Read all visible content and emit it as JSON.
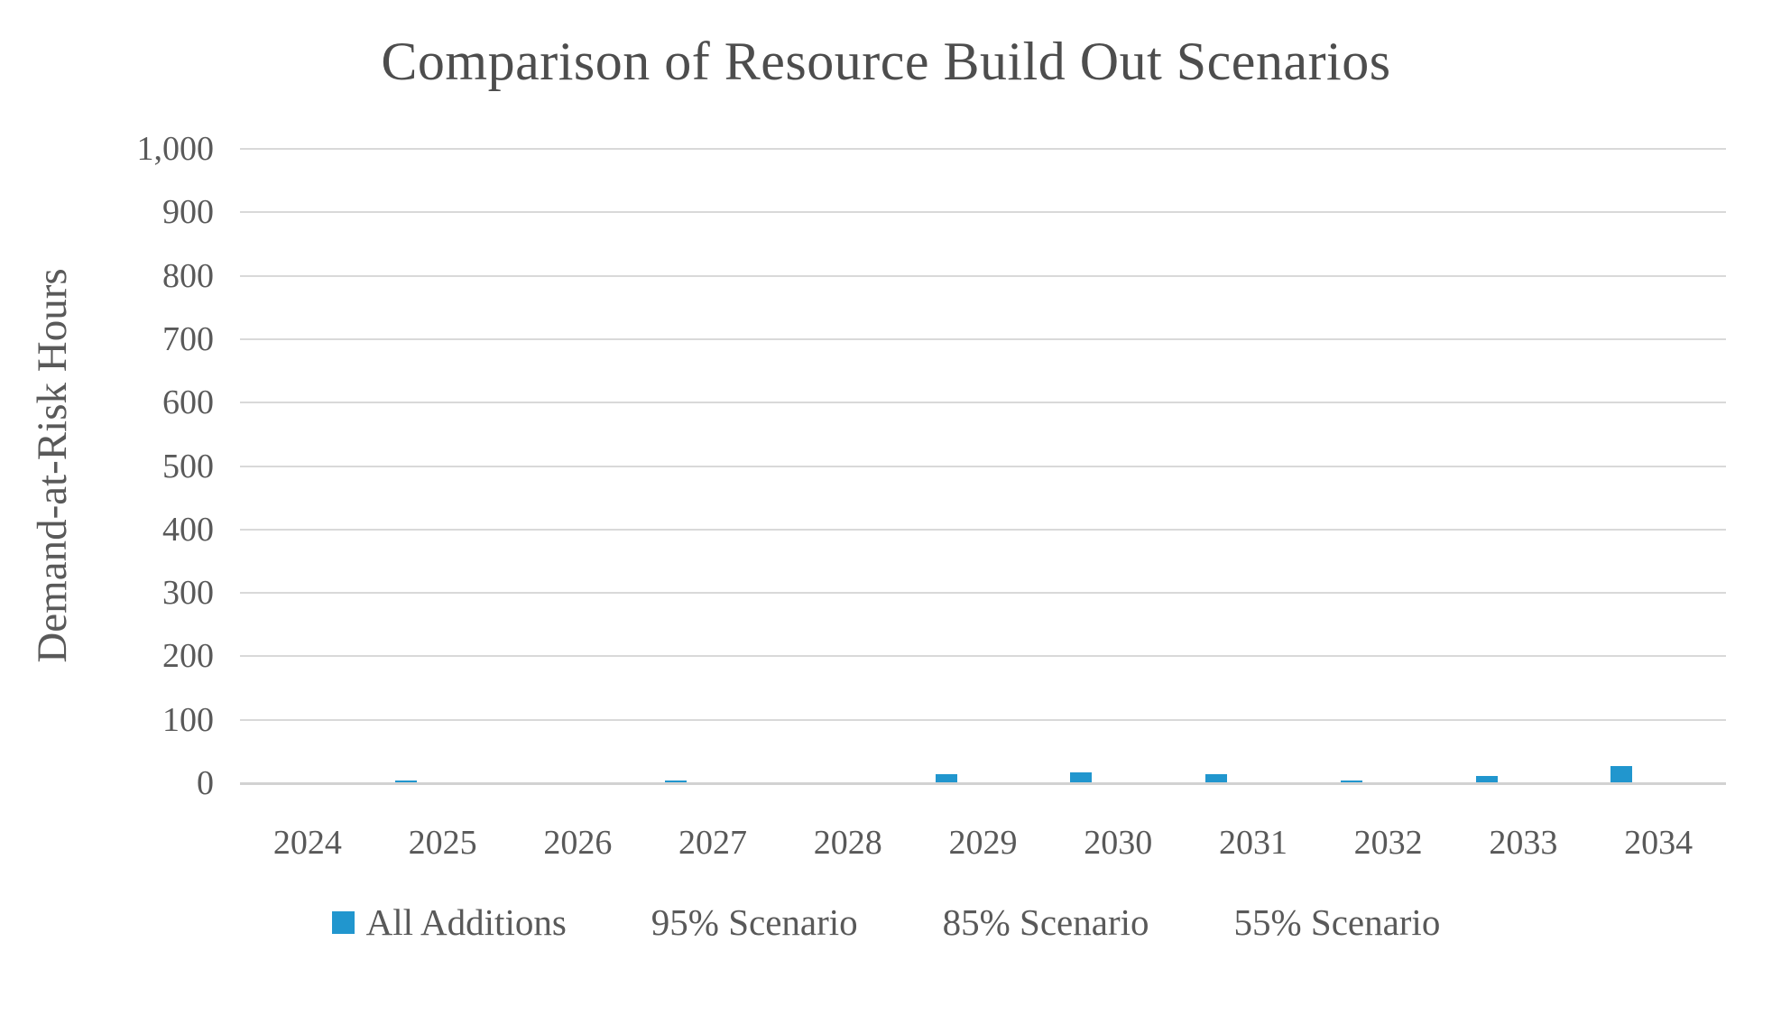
{
  "chart_data": {
    "type": "bar",
    "title": "Comparison of Resource Build Out Scenarios",
    "xlabel": "",
    "ylabel": "Demand-at-Risk Hours",
    "categories": [
      "2024",
      "2025",
      "2026",
      "2027",
      "2028",
      "2029",
      "2030",
      "2031",
      "2032",
      "2033",
      "2034"
    ],
    "series": [
      {
        "name": "All Additions",
        "color": "#2196CE",
        "values": [
          0,
          3,
          0,
          3,
          0,
          13,
          16,
          13,
          3,
          10,
          25
        ]
      },
      {
        "name": "95% Scenario",
        "color": "#FFFFFF",
        "values": [
          0,
          0,
          0,
          0,
          0,
          0,
          0,
          0,
          0,
          0,
          0
        ]
      },
      {
        "name": "85% Scenario",
        "color": "#FFFFFF",
        "values": [
          0,
          0,
          0,
          0,
          0,
          0,
          0,
          0,
          0,
          0,
          0
        ]
      },
      {
        "name": "55% Scenario",
        "color": "#FFFFFF",
        "values": [
          0,
          0,
          0,
          0,
          0,
          0,
          0,
          0,
          0,
          0,
          0
        ]
      }
    ],
    "ylim": [
      0,
      1000
    ],
    "yticks": [
      {
        "value": 0,
        "label": "0"
      },
      {
        "value": 100,
        "label": "100"
      },
      {
        "value": 200,
        "label": "200"
      },
      {
        "value": 300,
        "label": "300"
      },
      {
        "value": 400,
        "label": "400"
      },
      {
        "value": 500,
        "label": "500"
      },
      {
        "value": 600,
        "label": "600"
      },
      {
        "value": 700,
        "label": "700"
      },
      {
        "value": 800,
        "label": "800"
      },
      {
        "value": 900,
        "label": "900"
      },
      {
        "value": 1000,
        "label": "1,000"
      }
    ],
    "grid": true,
    "legend_position": "bottom"
  },
  "colors": {
    "background": "#FFFFFF",
    "title_text": "#4D4D4D",
    "axis_text": "#595959",
    "gridline": "#D9D9D9",
    "baseline": "#D2D2D2",
    "bar_accent": "#2196CE"
  }
}
